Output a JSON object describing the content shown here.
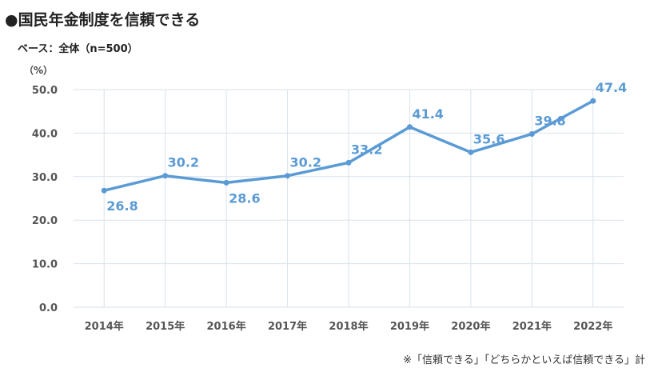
{
  "header": {
    "title": "●国民年金制度を信頼できる",
    "base": "ベース：全体（n=500）"
  },
  "footnote": "※「信頼できる」「どちらかといえば信頼できる」計",
  "colors": {
    "line": "#5b9bd5",
    "label": "#5b9bd5",
    "grid": "#d9e2ea"
  },
  "chart_data": {
    "type": "line",
    "title": "●国民年金制度を信頼できる",
    "ylabel": "（%）",
    "xlabel": "",
    "categories": [
      "2014年",
      "2015年",
      "2016年",
      "2017年",
      "2018年",
      "2019年",
      "2020年",
      "2021年",
      "2022年"
    ],
    "series": [
      {
        "name": "国民年金制度を信頼できる",
        "values": [
          26.8,
          30.2,
          28.6,
          30.2,
          33.2,
          41.4,
          35.6,
          39.8,
          47.4
        ]
      }
    ],
    "data_labels": [
      "26.8",
      "30.2",
      "28.6",
      "30.2",
      "33.2",
      "41.4",
      "35.6",
      "39.8",
      "47.4"
    ],
    "label_positions": [
      "below",
      "above",
      "below",
      "above",
      "above",
      "above",
      "above",
      "above",
      "above"
    ],
    "ylim": [
      0,
      50
    ],
    "yticks": [
      0,
      10,
      20,
      30,
      40,
      50
    ],
    "ytick_labels": [
      "0.0",
      "10.0",
      "20.0",
      "30.0",
      "40.0",
      "50.0"
    ],
    "grid": true,
    "legend": "none"
  }
}
